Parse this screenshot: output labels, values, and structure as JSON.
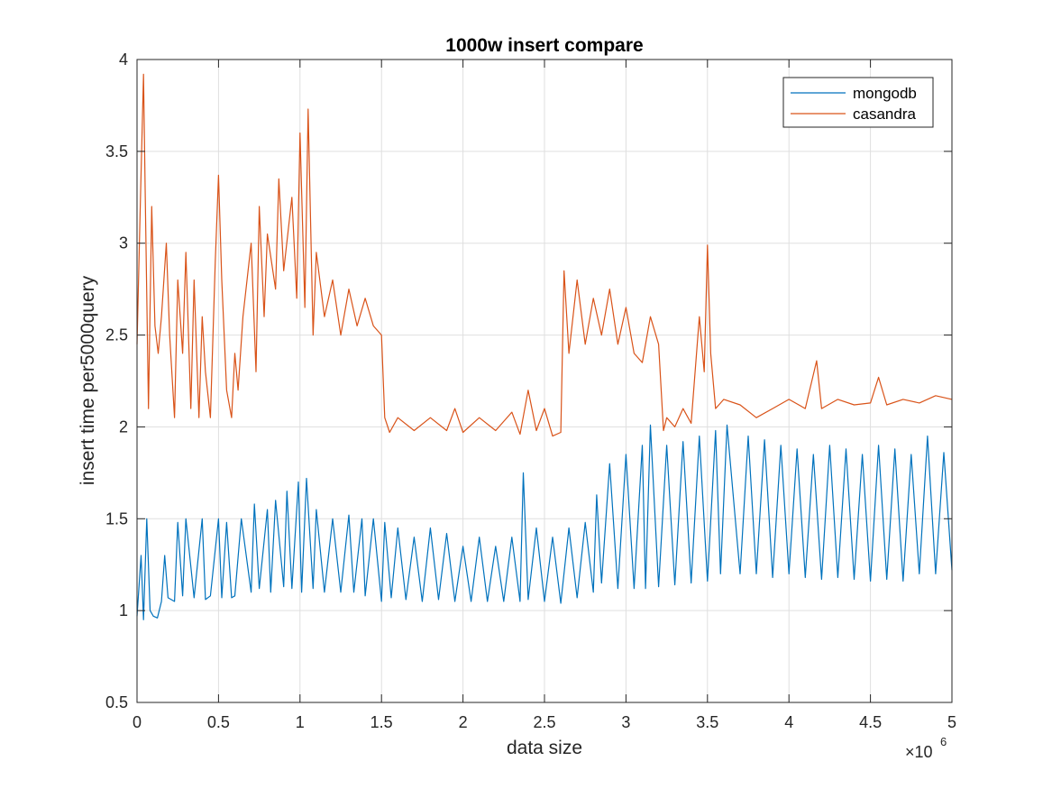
{
  "chart_data": {
    "type": "line",
    "title": "1000w insert compare",
    "xlabel": "data size",
    "ylabel": "insert time per5000query",
    "x_multiplier_label": "×10",
    "x_multiplier_exponent": "6",
    "xlim": [
      0,
      5000000
    ],
    "ylim": [
      0.5,
      4
    ],
    "x_ticks": [
      0,
      0.5,
      1,
      1.5,
      2,
      2.5,
      3,
      3.5,
      4,
      4.5,
      5
    ],
    "x_tick_labels": [
      "0",
      "0.5",
      "1",
      "1.5",
      "2",
      "2.5",
      "3",
      "3.5",
      "4",
      "4.5",
      "5"
    ],
    "y_ticks": [
      0.5,
      1,
      1.5,
      2,
      2.5,
      3,
      3.5,
      4
    ],
    "y_tick_labels": [
      "0.5",
      "1",
      "1.5",
      "2",
      "2.5",
      "3",
      "3.5",
      "4"
    ],
    "grid": true,
    "legend_position": "top-right",
    "series": [
      {
        "name": "mongodb",
        "color": "#0072bd",
        "x": [
          0,
          25000,
          40000,
          60000,
          80000,
          100000,
          125000,
          150000,
          170000,
          190000,
          230000,
          250000,
          280000,
          300000,
          350000,
          400000,
          420000,
          450000,
          500000,
          520000,
          550000,
          580000,
          600000,
          640000,
          700000,
          720000,
          750000,
          800000,
          820000,
          850000,
          900000,
          920000,
          950000,
          990000,
          1010000,
          1040000,
          1080000,
          1100000,
          1150000,
          1200000,
          1250000,
          1300000,
          1330000,
          1380000,
          1400000,
          1450000,
          1500000,
          1520000,
          1560000,
          1600000,
          1650000,
          1700000,
          1750000,
          1800000,
          1850000,
          1900000,
          1950000,
          2000000,
          2050000,
          2100000,
          2150000,
          2200000,
          2250000,
          2300000,
          2350000,
          2370000,
          2400000,
          2450000,
          2500000,
          2550000,
          2600000,
          2650000,
          2700000,
          2750000,
          2800000,
          2820000,
          2850000,
          2900000,
          2950000,
          3000000,
          3050000,
          3100000,
          3120000,
          3150000,
          3200000,
          3250000,
          3300000,
          3350000,
          3400000,
          3450000,
          3500000,
          3550000,
          3580000,
          3620000,
          3700000,
          3750000,
          3800000,
          3850000,
          3900000,
          3950000,
          4000000,
          4050000,
          4100000,
          4150000,
          4200000,
          4250000,
          4300000,
          4350000,
          4400000,
          4450000,
          4500000,
          4550000,
          4600000,
          4650000,
          4700000,
          4750000,
          4800000,
          4850000,
          4900000,
          4950000,
          5000000
        ],
        "values": [
          0.97,
          1.3,
          0.95,
          1.5,
          1.0,
          0.97,
          0.96,
          1.05,
          1.3,
          1.07,
          1.05,
          1.48,
          1.08,
          1.5,
          1.07,
          1.5,
          1.06,
          1.08,
          1.5,
          1.07,
          1.48,
          1.07,
          1.08,
          1.5,
          1.1,
          1.58,
          1.12,
          1.55,
          1.1,
          1.6,
          1.13,
          1.65,
          1.12,
          1.7,
          1.1,
          1.72,
          1.12,
          1.55,
          1.1,
          1.5,
          1.1,
          1.52,
          1.1,
          1.5,
          1.08,
          1.5,
          1.05,
          1.48,
          1.07,
          1.45,
          1.06,
          1.4,
          1.05,
          1.45,
          1.06,
          1.42,
          1.05,
          1.35,
          1.05,
          1.4,
          1.05,
          1.35,
          1.05,
          1.4,
          1.05,
          1.75,
          1.06,
          1.45,
          1.05,
          1.4,
          1.04,
          1.45,
          1.07,
          1.48,
          1.1,
          1.63,
          1.15,
          1.8,
          1.12,
          1.85,
          1.12,
          1.9,
          1.12,
          2.01,
          1.13,
          1.9,
          1.14,
          1.92,
          1.15,
          1.95,
          1.16,
          1.98,
          1.2,
          2.01,
          1.2,
          1.95,
          1.2,
          1.93,
          1.18,
          1.9,
          1.2,
          1.88,
          1.18,
          1.85,
          1.17,
          1.9,
          1.18,
          1.88,
          1.17,
          1.85,
          1.16,
          1.9,
          1.17,
          1.88,
          1.16,
          1.85,
          1.2,
          1.95,
          1.2,
          1.86,
          1.22
        ]
      },
      {
        "name": "casandra",
        "color": "#d95319",
        "x": [
          0,
          20000,
          40000,
          50000,
          70000,
          90000,
          110000,
          130000,
          150000,
          180000,
          200000,
          230000,
          250000,
          280000,
          300000,
          330000,
          350000,
          380000,
          400000,
          420000,
          450000,
          480000,
          500000,
          520000,
          550000,
          580000,
          600000,
          620000,
          650000,
          700000,
          730000,
          750000,
          780000,
          800000,
          850000,
          870000,
          900000,
          950000,
          980000,
          1000000,
          1030000,
          1050000,
          1080000,
          1100000,
          1150000,
          1200000,
          1250000,
          1300000,
          1350000,
          1400000,
          1450000,
          1500000,
          1520000,
          1550000,
          1600000,
          1700000,
          1800000,
          1900000,
          1950000,
          2000000,
          2100000,
          2200000,
          2300000,
          2350000,
          2400000,
          2450000,
          2500000,
          2550000,
          2600000,
          2620000,
          2650000,
          2700000,
          2750000,
          2800000,
          2850000,
          2900000,
          2950000,
          3000000,
          3050000,
          3100000,
          3150000,
          3200000,
          3230000,
          3250000,
          3300000,
          3350000,
          3400000,
          3450000,
          3480000,
          3500000,
          3520000,
          3550000,
          3600000,
          3700000,
          3800000,
          3900000,
          4000000,
          4100000,
          4170000,
          4200000,
          4300000,
          4400000,
          4500000,
          4550000,
          4600000,
          4700000,
          4800000,
          4900000,
          5000000
        ],
        "values": [
          2.45,
          3.2,
          3.92,
          3.3,
          2.1,
          3.2,
          2.55,
          2.4,
          2.6,
          3.0,
          2.5,
          2.05,
          2.8,
          2.4,
          2.95,
          2.1,
          2.8,
          2.05,
          2.6,
          2.3,
          2.05,
          2.9,
          3.37,
          2.8,
          2.2,
          2.05,
          2.4,
          2.2,
          2.6,
          3.0,
          2.3,
          3.2,
          2.6,
          3.05,
          2.75,
          3.35,
          2.85,
          3.25,
          2.7,
          3.6,
          2.65,
          3.73,
          2.5,
          2.95,
          2.6,
          2.8,
          2.5,
          2.75,
          2.55,
          2.7,
          2.55,
          2.5,
          2.05,
          1.97,
          2.05,
          1.98,
          2.05,
          1.98,
          2.1,
          1.97,
          2.05,
          1.98,
          2.08,
          1.96,
          2.2,
          1.98,
          2.1,
          1.95,
          1.97,
          2.85,
          2.4,
          2.8,
          2.45,
          2.7,
          2.5,
          2.75,
          2.45,
          2.65,
          2.4,
          2.35,
          2.6,
          2.45,
          1.98,
          2.05,
          2.0,
          2.1,
          2.02,
          2.6,
          2.3,
          2.99,
          2.4,
          2.1,
          2.15,
          2.12,
          2.05,
          2.1,
          2.15,
          2.1,
          2.36,
          2.1,
          2.15,
          2.12,
          2.13,
          2.27,
          2.12,
          2.15,
          2.13,
          2.17,
          2.15
        ]
      }
    ]
  }
}
